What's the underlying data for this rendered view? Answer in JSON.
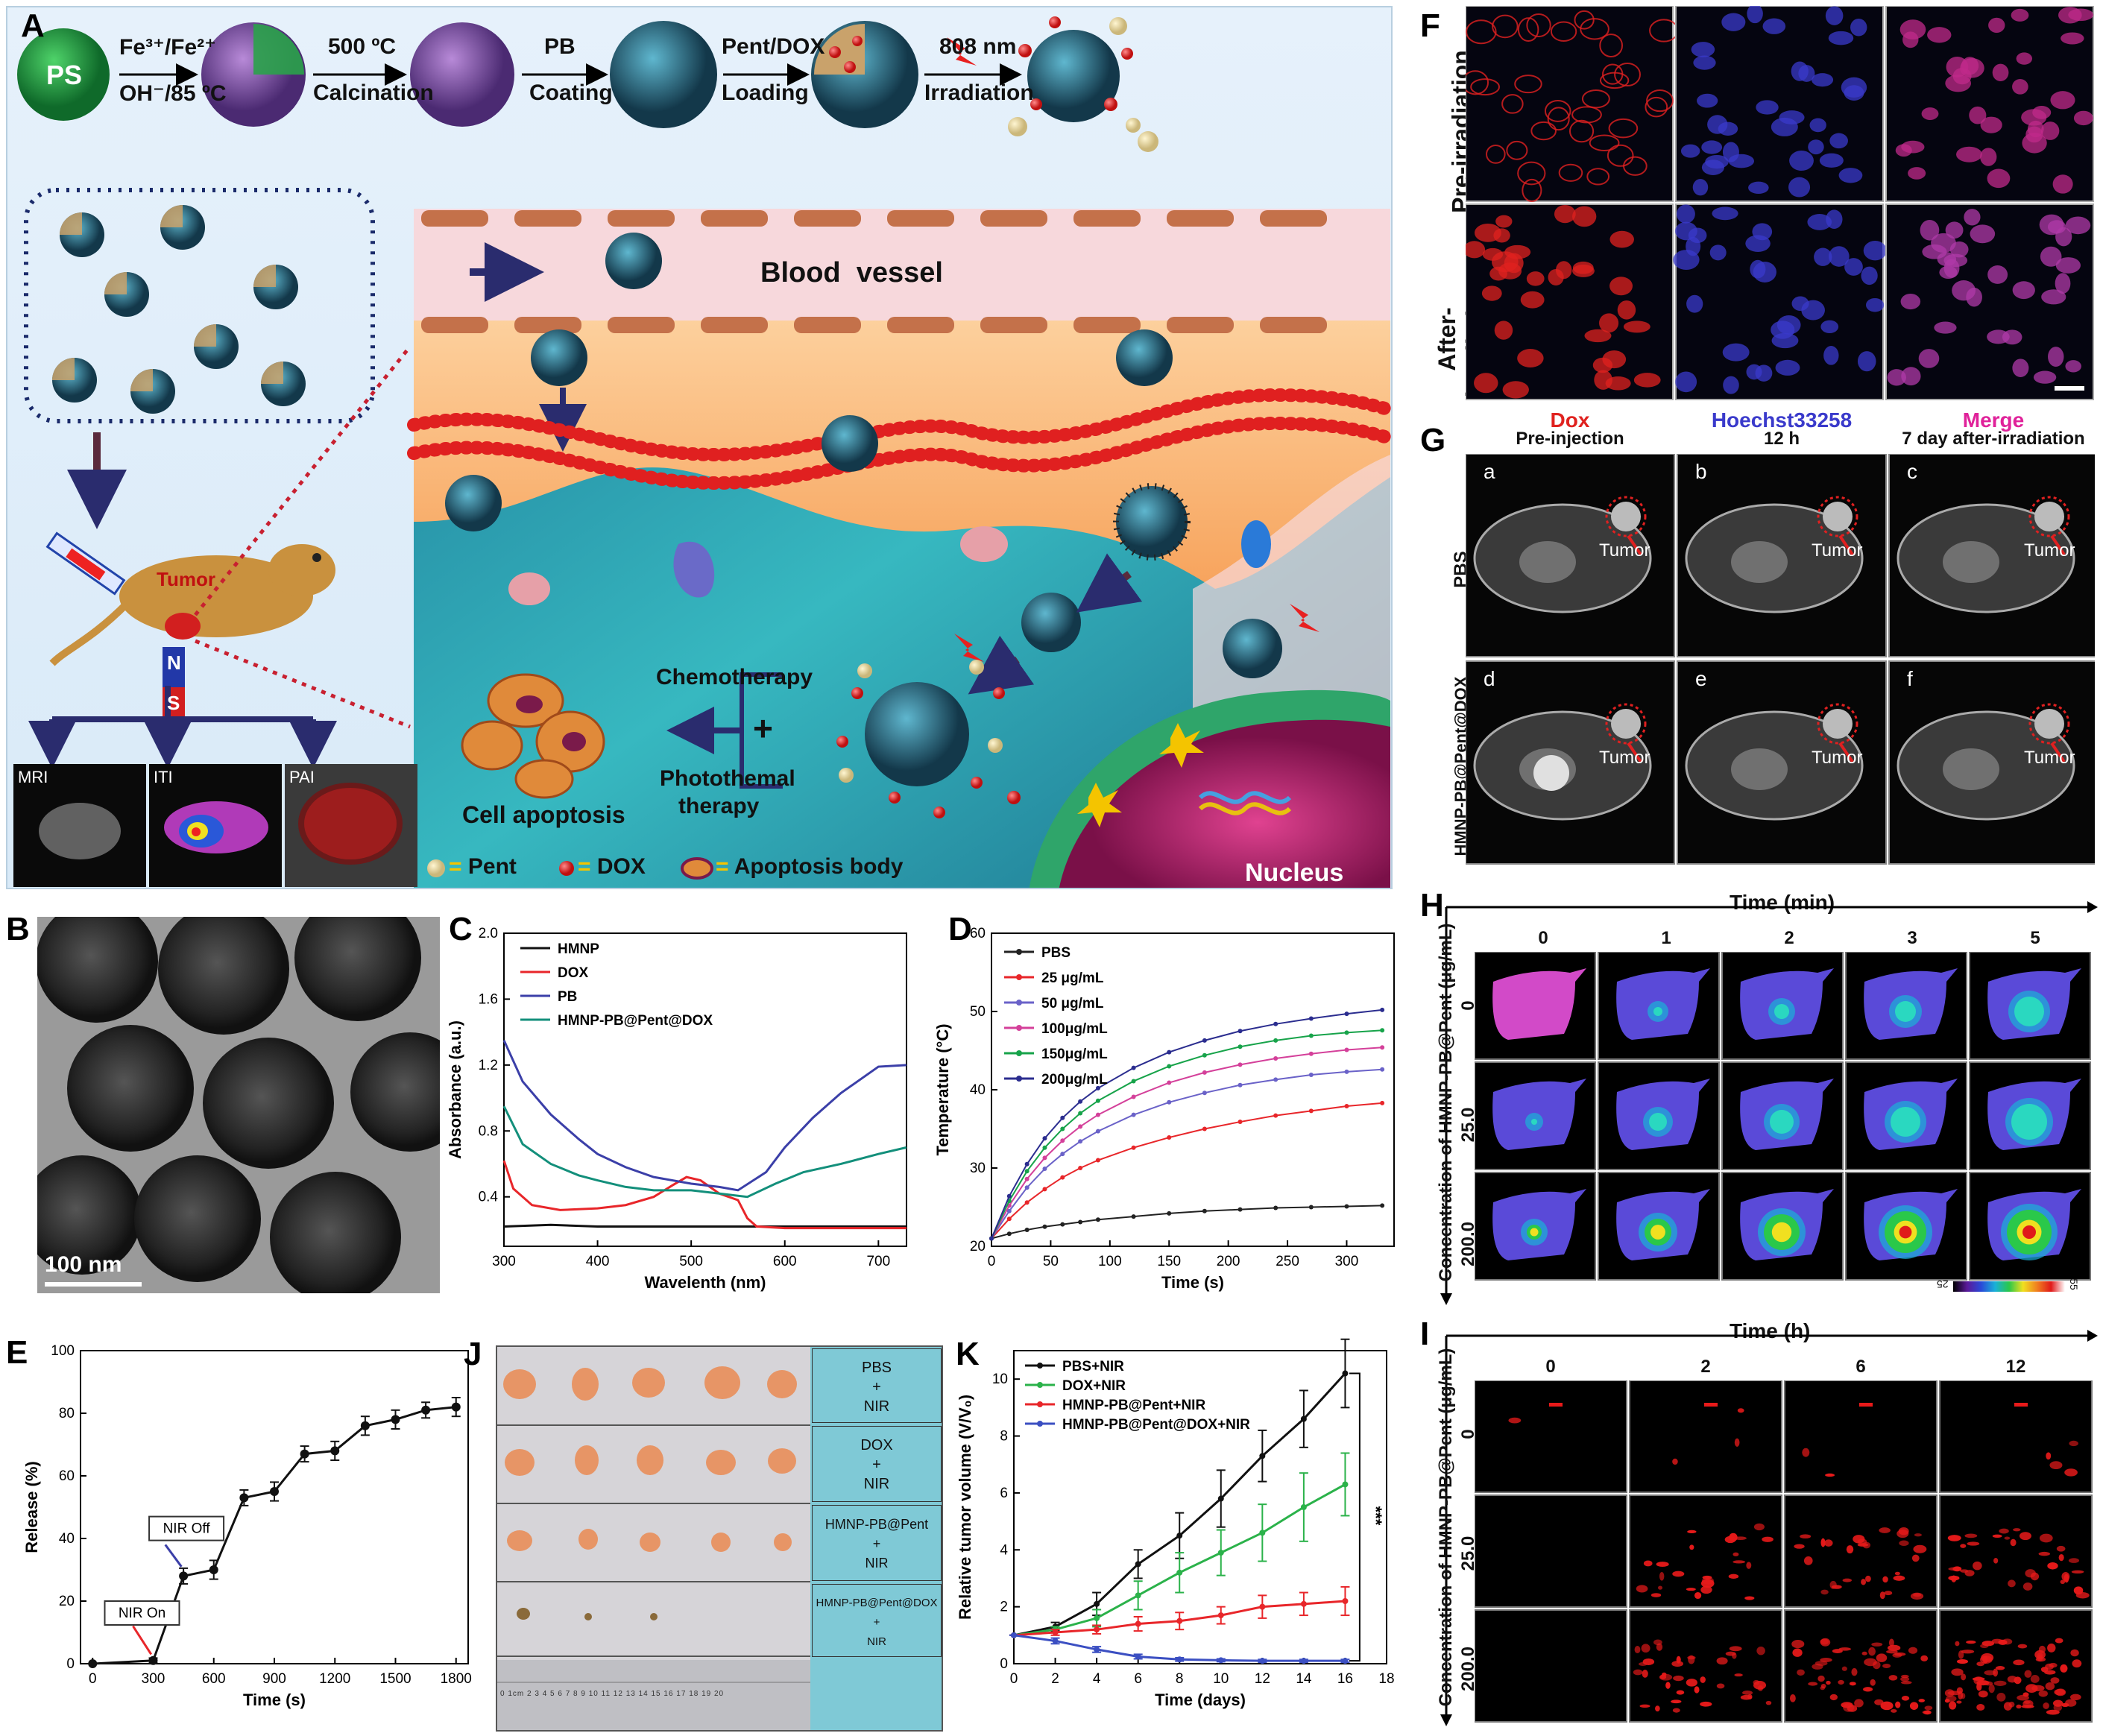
{
  "panel_labels": {
    "A": "A",
    "B": "B",
    "C": "C",
    "D": "D",
    "E": "E",
    "F": "F",
    "G": "G",
    "H": "H",
    "I": "I",
    "J": "J",
    "K": "K"
  },
  "colors": {
    "bg_sky": "#dfeef9",
    "shell": "#2d5f77",
    "pink": "#f7d8dc",
    "green": "#1f8a3b",
    "purple": "#8550a8",
    "nucleus": "#b1266a",
    "red": "#e01a1a"
  },
  "panelA": {
    "ps": "PS",
    "steps": [
      {
        "top": "Fe³⁺/Fe²⁺",
        "bottom": "OH⁻/85 ºC"
      },
      {
        "top": "500 ºC",
        "bottom": "Calcination"
      },
      {
        "top": "PB",
        "bottom": "Coating"
      },
      {
        "top": "Pent/DOX",
        "bottom": "Loading"
      },
      {
        "top": "808 nm",
        "bottom": "Irradiation"
      }
    ],
    "blood_vessel": "Blood  vessel",
    "tumor": "Tumor",
    "magnet_n": "N",
    "magnet_s": "S",
    "imaging": [
      "MRI",
      "ITI",
      "PAI"
    ],
    "chemo": "Chemotherapy",
    "plus": "+",
    "ptt": "Photothemal",
    "therapy": "therapy",
    "apoptosis": "Cell apoptosis",
    "nucleus": "Nucleus",
    "legend": [
      {
        "sym": "=",
        "label": "Pent"
      },
      {
        "sym": "=",
        "label": "DOX"
      },
      {
        "sym": "=",
        "label": "Apoptosis body"
      }
    ]
  },
  "panelB": {
    "scale": "100 nm"
  },
  "panelF": {
    "rows": [
      "Pre-irradiation",
      "After-irradiation"
    ],
    "cols": [
      "Dox",
      "Hoechst33258",
      "Merge"
    ],
    "col_colors": [
      "#e0221f",
      "#3a3acb",
      "#e0229a"
    ]
  },
  "panelG": {
    "cols": [
      "Pre-injection",
      "12 h",
      "7 day after-irradiation"
    ],
    "rows": [
      "PBS",
      "HMNP-PB@Pent@DOX"
    ],
    "letters": [
      "a",
      "b",
      "c",
      "d",
      "e",
      "f"
    ],
    "tumor": "Tumor"
  },
  "panelH": {
    "time_title": "Time (min)",
    "times": [
      "0",
      "1",
      "2",
      "3",
      "5"
    ],
    "conc_title": "Concentration of HMNP-PB@Pent (μg/mL)",
    "concs": [
      "0",
      "25.0",
      "200.0"
    ],
    "scale_min": "25",
    "scale_max": "55"
  },
  "panelI": {
    "time_title": "Time (h)",
    "times": [
      "0",
      "2",
      "6",
      "12"
    ],
    "conc_title": "Concentration of HMNP-PB@Pent (μg/mL)",
    "concs": [
      "0",
      "25.0",
      "200.0"
    ]
  },
  "panelJ": {
    "labels": [
      [
        "PBS",
        "+",
        "NIR"
      ],
      [
        "DOX",
        "+",
        "NIR"
      ],
      [
        "HMNP-PB@Pent",
        "+",
        "NIR"
      ],
      [
        "HMNP-PB@Pent@DOX",
        "+",
        "NIR"
      ]
    ],
    "ruler": "0 1cm 2 3 4 5 6 7 8 9 10 11 12 13 14 15 16 17 18 19 20"
  },
  "chart_data": [
    {
      "id": "C",
      "type": "line",
      "title": "",
      "xlabel": "Wavelenth (nm)",
      "ylabel": "Absorbance (a.u.)",
      "xlim": [
        300,
        730
      ],
      "ylim": [
        0.1,
        2.0
      ],
      "xticks": [
        300,
        400,
        500,
        600,
        700
      ],
      "yticks": [
        0.4,
        0.8,
        1.2,
        1.6,
        2.0
      ],
      "series": [
        {
          "name": "HMNP",
          "color": "#111111",
          "x": [
            300,
            350,
            400,
            450,
            500,
            550,
            600,
            650,
            700,
            730
          ],
          "y": [
            0.22,
            0.23,
            0.22,
            0.22,
            0.22,
            0.22,
            0.22,
            0.22,
            0.22,
            0.22
          ]
        },
        {
          "name": "DOX",
          "color": "#e8262a",
          "x": [
            300,
            310,
            330,
            360,
            400,
            430,
            460,
            480,
            495,
            510,
            530,
            550,
            560,
            570,
            600,
            650,
            700,
            730
          ],
          "y": [
            0.62,
            0.45,
            0.35,
            0.32,
            0.33,
            0.35,
            0.4,
            0.47,
            0.52,
            0.5,
            0.42,
            0.38,
            0.27,
            0.22,
            0.21,
            0.21,
            0.21,
            0.21
          ]
        },
        {
          "name": "PB",
          "color": "#3b3fa8",
          "x": [
            300,
            320,
            350,
            380,
            400,
            430,
            460,
            500,
            530,
            550,
            580,
            600,
            630,
            660,
            700,
            730
          ],
          "y": [
            1.35,
            1.1,
            0.9,
            0.75,
            0.66,
            0.58,
            0.52,
            0.48,
            0.46,
            0.44,
            0.55,
            0.7,
            0.88,
            1.03,
            1.19,
            1.2
          ]
        },
        {
          "name": "HMNP-PB@Pent@DOX",
          "color": "#138f7b",
          "x": [
            300,
            320,
            350,
            380,
            400,
            430,
            460,
            500,
            530,
            560,
            590,
            620,
            660,
            700,
            730
          ],
          "y": [
            0.95,
            0.72,
            0.6,
            0.53,
            0.5,
            0.46,
            0.44,
            0.44,
            0.42,
            0.4,
            0.48,
            0.55,
            0.6,
            0.66,
            0.7
          ]
        }
      ]
    },
    {
      "id": "D",
      "type": "line",
      "title": "",
      "xlabel": "Time (s)",
      "ylabel": "Temperature (°C)",
      "xlim": [
        0,
        340
      ],
      "ylim": [
        20,
        60
      ],
      "xticks": [
        0,
        50,
        100,
        150,
        200,
        250,
        300
      ],
      "yticks": [
        20,
        30,
        40,
        50,
        60
      ],
      "x": [
        0,
        15,
        30,
        45,
        60,
        75,
        90,
        120,
        150,
        180,
        210,
        240,
        270,
        300,
        330
      ],
      "series": [
        {
          "name": "PBS",
          "color": "#222222",
          "y": [
            21.0,
            21.6,
            22.1,
            22.5,
            22.8,
            23.1,
            23.4,
            23.8,
            24.2,
            24.5,
            24.7,
            24.9,
            25.0,
            25.1,
            25.2
          ]
        },
        {
          "name": "25 μg/mL",
          "color": "#e8262a",
          "y": [
            21.0,
            23.5,
            25.6,
            27.3,
            28.8,
            30.0,
            31.0,
            32.6,
            33.9,
            35.0,
            35.9,
            36.7,
            37.3,
            37.9,
            38.3
          ]
        },
        {
          "name": "50 μg/mL",
          "color": "#6a62c8",
          "y": [
            21.0,
            24.5,
            27.5,
            29.9,
            31.8,
            33.4,
            34.7,
            36.8,
            38.4,
            39.6,
            40.6,
            41.3,
            41.9,
            42.3,
            42.6
          ]
        },
        {
          "name": "100μg/mL",
          "color": "#d4409a",
          "y": [
            21.0,
            25.2,
            28.6,
            31.3,
            33.5,
            35.3,
            36.8,
            39.1,
            40.9,
            42.2,
            43.2,
            44.0,
            44.6,
            45.1,
            45.4
          ]
        },
        {
          "name": "150μg/mL",
          "color": "#17a34a",
          "y": [
            21.0,
            25.8,
            29.6,
            32.6,
            35.0,
            37.0,
            38.6,
            41.1,
            43.0,
            44.4,
            45.5,
            46.3,
            46.9,
            47.3,
            47.6
          ]
        },
        {
          "name": "200μg/mL",
          "color": "#2b2d8f",
          "y": [
            21.0,
            26.4,
            30.5,
            33.8,
            36.4,
            38.5,
            40.2,
            42.8,
            44.8,
            46.3,
            47.5,
            48.4,
            49.1,
            49.7,
            50.2
          ]
        }
      ]
    },
    {
      "id": "E",
      "type": "line",
      "title": "",
      "xlabel": "Time (s)",
      "ylabel": "Release (%)",
      "xlim": [
        -60,
        1860
      ],
      "ylim": [
        0,
        100
      ],
      "xticks": [
        0,
        300,
        600,
        900,
        1200,
        1500,
        1800
      ],
      "yticks": [
        0,
        20,
        40,
        60,
        80,
        100
      ],
      "series": [
        {
          "name": "Release",
          "color": "#111111",
          "x": [
            0,
            300,
            450,
            600,
            750,
            900,
            1050,
            1200,
            1350,
            1500,
            1650,
            1800
          ],
          "y": [
            0,
            1,
            28,
            30,
            53,
            55,
            67,
            68,
            76,
            78,
            81,
            82
          ],
          "err": [
            0,
            0.8,
            2.5,
            3,
            2.5,
            3,
            2.5,
            3,
            3,
            3,
            2.5,
            3
          ]
        }
      ],
      "annotations": [
        "NIR On",
        "NIR Off"
      ]
    },
    {
      "id": "K",
      "type": "line",
      "title": "",
      "xlabel": "Time (days)",
      "ylabel": "Relative tumor volume (V/V₀)",
      "xlim": [
        0,
        18
      ],
      "ylim": [
        0,
        11
      ],
      "xticks": [
        0,
        2,
        4,
        6,
        8,
        10,
        12,
        14,
        16,
        18
      ],
      "yticks": [
        0,
        2,
        4,
        6,
        8,
        10
      ],
      "x": [
        0,
        2,
        4,
        6,
        8,
        10,
        12,
        14,
        16
      ],
      "series": [
        {
          "name": "PBS+NIR",
          "color": "#111111",
          "y": [
            1,
            1.3,
            2.1,
            3.5,
            4.5,
            5.8,
            7.3,
            8.6,
            10.2
          ],
          "err": [
            0,
            0.15,
            0.4,
            0.5,
            0.8,
            1.0,
            0.9,
            1.0,
            1.2
          ]
        },
        {
          "name": "DOX+NIR",
          "color": "#2bb24a",
          "y": [
            1,
            1.2,
            1.6,
            2.4,
            3.2,
            3.9,
            4.6,
            5.5,
            6.3
          ],
          "err": [
            0,
            0.1,
            0.3,
            0.5,
            0.7,
            0.8,
            1.0,
            1.2,
            1.1
          ]
        },
        {
          "name": "HMNP-PB@Pent+NIR",
          "color": "#e8262a",
          "y": [
            1,
            1.1,
            1.2,
            1.4,
            1.5,
            1.7,
            2.0,
            2.1,
            2.2
          ],
          "err": [
            0,
            0.1,
            0.15,
            0.25,
            0.3,
            0.3,
            0.4,
            0.4,
            0.5
          ]
        },
        {
          "name": "HMNP-PB@Pent@DOX+NIR",
          "color": "#3b4fc2",
          "y": [
            1,
            0.8,
            0.5,
            0.25,
            0.15,
            0.12,
            0.1,
            0.1,
            0.1
          ],
          "err": [
            0,
            0.1,
            0.1,
            0.08,
            0.06,
            0.05,
            0.05,
            0.05,
            0.05
          ]
        }
      ],
      "annotations": [
        "***"
      ]
    }
  ]
}
